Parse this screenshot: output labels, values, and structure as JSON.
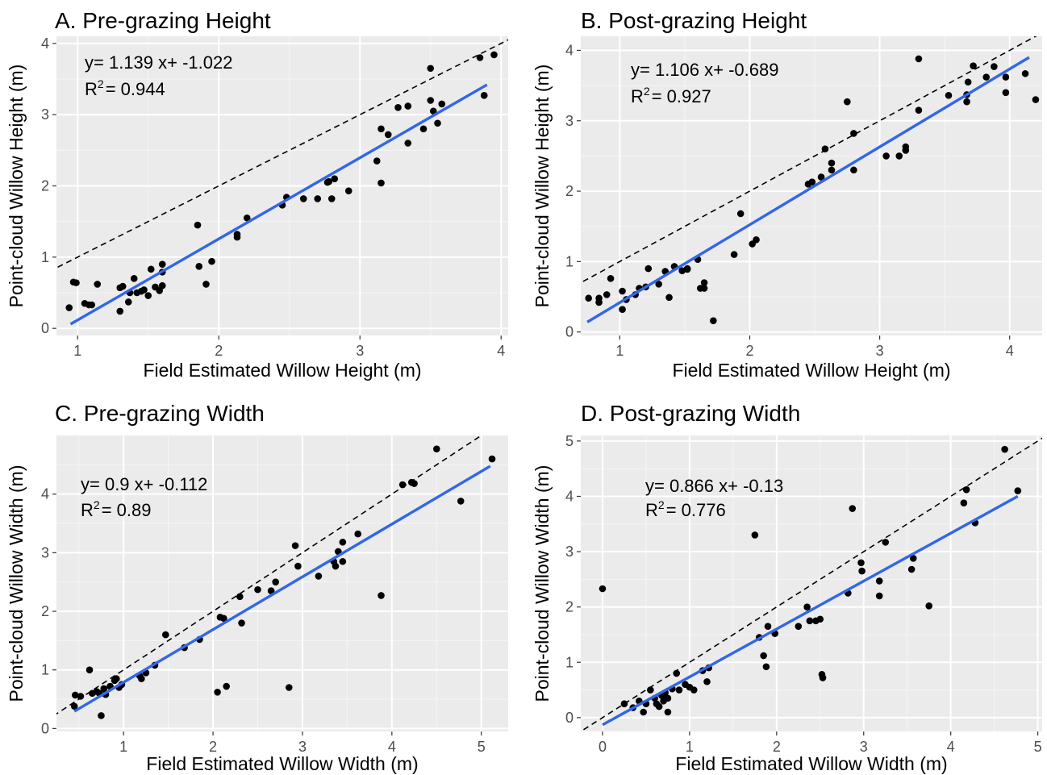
{
  "chart_data": [
    {
      "type": "scatter",
      "title": "A. Pre-grazing Height",
      "xlabel": "Field Estimated Willow Height (m)",
      "ylabel": "Point-cloud Willow Height (m)",
      "xlim": [
        0.85,
        4.05
      ],
      "ylim": [
        -0.1,
        4.1
      ],
      "xticks": [
        1,
        2,
        3,
        4
      ],
      "yticks": [
        0,
        1,
        2,
        3,
        4
      ],
      "grid": true,
      "equation": "y= 1.139 x+ -1.022",
      "r2_label": "R",
      "r2_sup": "2",
      "r2_value": "= 0.944",
      "fit": {
        "slope": 1.139,
        "intercept": -1.022,
        "x_range": [
          0.95,
          3.9
        ],
        "color": "#3366e6"
      },
      "identity_line": true,
      "points": [
        [
          0.94,
          0.29
        ],
        [
          0.97,
          0.65
        ],
        [
          0.99,
          0.64
        ],
        [
          1.05,
          0.35
        ],
        [
          1.08,
          0.33
        ],
        [
          1.1,
          0.33
        ],
        [
          1.14,
          0.62
        ],
        [
          1.3,
          0.24
        ],
        [
          1.3,
          0.57
        ],
        [
          1.32,
          0.59
        ],
        [
          1.36,
          0.37
        ],
        [
          1.37,
          0.5
        ],
        [
          1.4,
          0.7
        ],
        [
          1.42,
          0.5
        ],
        [
          1.45,
          0.52
        ],
        [
          1.47,
          0.54
        ],
        [
          1.5,
          0.46
        ],
        [
          1.52,
          0.83
        ],
        [
          1.55,
          0.58
        ],
        [
          1.58,
          0.53
        ],
        [
          1.6,
          0.6
        ],
        [
          1.6,
          0.79
        ],
        [
          1.6,
          0.9
        ],
        [
          1.85,
          1.45
        ],
        [
          1.86,
          0.87
        ],
        [
          1.91,
          0.62
        ],
        [
          1.95,
          0.94
        ],
        [
          2.13,
          1.32
        ],
        [
          2.13,
          1.28
        ],
        [
          2.2,
          1.55
        ],
        [
          2.45,
          1.73
        ],
        [
          2.48,
          1.84
        ],
        [
          2.6,
          1.82
        ],
        [
          2.7,
          1.82
        ],
        [
          2.77,
          2.05
        ],
        [
          2.78,
          2.06
        ],
        [
          2.8,
          1.82
        ],
        [
          2.82,
          2.1
        ],
        [
          2.92,
          1.93
        ],
        [
          3.12,
          2.35
        ],
        [
          3.15,
          2.04
        ],
        [
          3.15,
          2.8
        ],
        [
          3.2,
          2.72
        ],
        [
          3.27,
          3.1
        ],
        [
          3.34,
          3.12
        ],
        [
          3.34,
          2.6
        ],
        [
          3.45,
          2.8
        ],
        [
          3.5,
          3.65
        ],
        [
          3.5,
          3.2
        ],
        [
          3.52,
          3.05
        ],
        [
          3.55,
          2.88
        ],
        [
          3.58,
          3.15
        ],
        [
          3.85,
          3.8
        ],
        [
          3.88,
          3.27
        ],
        [
          3.95,
          3.84
        ]
      ]
    },
    {
      "type": "scatter",
      "title": "B. Post-grazing Height",
      "xlabel": "Field Estimated Willow Height (m)",
      "ylabel": "Point-cloud Willow Height (m)",
      "xlim": [
        0.7,
        4.25
      ],
      "ylim": [
        -0.05,
        4.2
      ],
      "xticks": [
        1,
        2,
        3,
        4
      ],
      "yticks": [
        0,
        1,
        2,
        3,
        4
      ],
      "grid": true,
      "equation": "y= 1.106 x+ -0.689",
      "r2_label": "R",
      "r2_sup": "2",
      "r2_value": "= 0.927",
      "fit": {
        "slope": 1.106,
        "intercept": -0.689,
        "x_range": [
          0.75,
          4.15
        ],
        "color": "#3366e6"
      },
      "identity_line": true,
      "points": [
        [
          0.76,
          0.48
        ],
        [
          0.84,
          0.42
        ],
        [
          0.84,
          0.48
        ],
        [
          0.9,
          0.53
        ],
        [
          0.93,
          0.76
        ],
        [
          1.02,
          0.32
        ],
        [
          1.02,
          0.58
        ],
        [
          1.05,
          0.46
        ],
        [
          1.12,
          0.53
        ],
        [
          1.15,
          0.62
        ],
        [
          1.2,
          0.64
        ],
        [
          1.22,
          0.9
        ],
        [
          1.3,
          0.68
        ],
        [
          1.35,
          0.86
        ],
        [
          1.38,
          0.49
        ],
        [
          1.42,
          0.93
        ],
        [
          1.48,
          0.87
        ],
        [
          1.52,
          0.9
        ],
        [
          1.52,
          0.89
        ],
        [
          1.6,
          1.03
        ],
        [
          1.62,
          0.62
        ],
        [
          1.65,
          0.62
        ],
        [
          1.65,
          0.7
        ],
        [
          1.72,
          0.16
        ],
        [
          1.88,
          1.1
        ],
        [
          1.93,
          1.68
        ],
        [
          2.02,
          1.25
        ],
        [
          2.05,
          1.31
        ],
        [
          2.45,
          2.1
        ],
        [
          2.48,
          2.13
        ],
        [
          2.55,
          2.2
        ],
        [
          2.58,
          2.6
        ],
        [
          2.63,
          2.3
        ],
        [
          2.63,
          2.4
        ],
        [
          2.75,
          3.27
        ],
        [
          2.8,
          2.3
        ],
        [
          2.8,
          2.82
        ],
        [
          3.05,
          2.5
        ],
        [
          3.15,
          2.5
        ],
        [
          3.2,
          2.58
        ],
        [
          3.2,
          2.63
        ],
        [
          3.3,
          3.15
        ],
        [
          3.3,
          3.88
        ],
        [
          3.53,
          3.36
        ],
        [
          3.67,
          3.27
        ],
        [
          3.67,
          3.37
        ],
        [
          3.68,
          3.55
        ],
        [
          3.72,
          3.78
        ],
        [
          3.82,
          3.62
        ],
        [
          3.88,
          3.77
        ],
        [
          3.97,
          3.4
        ],
        [
          3.97,
          3.62
        ],
        [
          4.12,
          3.67
        ],
        [
          4.2,
          3.3
        ]
      ]
    },
    {
      "type": "scatter",
      "title": "C. Pre-grazing Width",
      "xlabel": "Field Estimated Willow Width (m)",
      "ylabel": "Point-cloud Willow Width (m)",
      "xlim": [
        0.25,
        5.3
      ],
      "ylim": [
        -0.05,
        5.0
      ],
      "xticks": [
        1,
        2,
        3,
        4,
        5
      ],
      "yticks": [
        0,
        1,
        2,
        3,
        4
      ],
      "grid": true,
      "equation": "y= 0.9 x+ -0.112",
      "r2_label": "R",
      "r2_sup": "2",
      "r2_value": "= 0.89",
      "fit": {
        "slope": 0.9,
        "intercept": -0.112,
        "x_range": [
          0.45,
          5.1
        ],
        "color": "#3366e6"
      },
      "identity_line": true,
      "points": [
        [
          0.45,
          0.38
        ],
        [
          0.46,
          0.57
        ],
        [
          0.52,
          0.55
        ],
        [
          0.62,
          1.0
        ],
        [
          0.65,
          0.6
        ],
        [
          0.7,
          0.63
        ],
        [
          0.73,
          0.6
        ],
        [
          0.75,
          0.22
        ],
        [
          0.78,
          0.68
        ],
        [
          0.8,
          0.58
        ],
        [
          0.85,
          0.72
        ],
        [
          0.9,
          0.82
        ],
        [
          0.92,
          0.85
        ],
        [
          0.95,
          0.7
        ],
        [
          0.98,
          0.75
        ],
        [
          1.18,
          0.9
        ],
        [
          1.2,
          0.85
        ],
        [
          1.25,
          0.95
        ],
        [
          1.35,
          1.08
        ],
        [
          1.47,
          1.6
        ],
        [
          1.68,
          1.38
        ],
        [
          1.85,
          1.52
        ],
        [
          2.05,
          0.62
        ],
        [
          2.08,
          1.9
        ],
        [
          2.12,
          1.88
        ],
        [
          2.15,
          0.72
        ],
        [
          2.3,
          2.25
        ],
        [
          2.32,
          1.8
        ],
        [
          2.5,
          2.37
        ],
        [
          2.65,
          2.35
        ],
        [
          2.7,
          2.5
        ],
        [
          2.85,
          0.7
        ],
        [
          2.92,
          3.12
        ],
        [
          2.95,
          2.77
        ],
        [
          3.18,
          2.6
        ],
        [
          3.35,
          2.85
        ],
        [
          3.37,
          2.77
        ],
        [
          3.4,
          3.02
        ],
        [
          3.45,
          3.18
        ],
        [
          3.45,
          2.85
        ],
        [
          3.62,
          3.32
        ],
        [
          3.88,
          2.27
        ],
        [
          4.12,
          4.16
        ],
        [
          4.22,
          4.2
        ],
        [
          4.25,
          4.18
        ],
        [
          4.5,
          4.77
        ],
        [
          4.77,
          3.88
        ],
        [
          5.12,
          4.6
        ]
      ]
    },
    {
      "type": "scatter",
      "title": "D. Post-grazing Width",
      "xlabel": "Field Estimated Willow Width (m)",
      "ylabel": "Point-cloud Willow Width (m)",
      "xlim": [
        -0.25,
        5.05
      ],
      "ylim": [
        -0.25,
        5.1
      ],
      "xticks": [
        0,
        1,
        2,
        3,
        4,
        5
      ],
      "yticks": [
        0,
        1,
        2,
        3,
        4,
        5
      ],
      "grid": true,
      "equation": "y= 0.866 x+ -0.13",
      "r2_label": "R",
      "r2_sup": "2",
      "r2_value": "= 0.776",
      "fit": {
        "slope": 0.866,
        "intercept": -0.13,
        "x_range": [
          0.0,
          4.77
        ],
        "color": "#3366e6"
      },
      "identity_line": true,
      "points": [
        [
          0.0,
          2.33
        ],
        [
          0.25,
          0.25
        ],
        [
          0.35,
          0.18
        ],
        [
          0.42,
          0.3
        ],
        [
          0.47,
          0.1
        ],
        [
          0.5,
          0.25
        ],
        [
          0.55,
          0.5
        ],
        [
          0.6,
          0.35
        ],
        [
          0.62,
          0.25
        ],
        [
          0.65,
          0.2
        ],
        [
          0.68,
          0.4
        ],
        [
          0.7,
          0.3
        ],
        [
          0.72,
          0.45
        ],
        [
          0.75,
          0.1
        ],
        [
          0.75,
          0.35
        ],
        [
          0.8,
          0.52
        ],
        [
          0.85,
          0.8
        ],
        [
          0.88,
          0.5
        ],
        [
          0.95,
          0.6
        ],
        [
          1.0,
          0.55
        ],
        [
          1.05,
          0.5
        ],
        [
          1.15,
          0.85
        ],
        [
          1.2,
          0.65
        ],
        [
          1.22,
          0.9
        ],
        [
          1.75,
          3.3
        ],
        [
          1.8,
          1.45
        ],
        [
          1.85,
          1.12
        ],
        [
          1.88,
          0.92
        ],
        [
          1.9,
          1.65
        ],
        [
          1.98,
          1.52
        ],
        [
          2.25,
          1.65
        ],
        [
          2.35,
          2.0
        ],
        [
          2.38,
          1.75
        ],
        [
          2.45,
          1.75
        ],
        [
          2.5,
          1.78
        ],
        [
          2.52,
          0.78
        ],
        [
          2.53,
          0.72
        ],
        [
          2.82,
          2.25
        ],
        [
          2.87,
          3.78
        ],
        [
          2.97,
          2.8
        ],
        [
          2.98,
          2.65
        ],
        [
          3.18,
          2.2
        ],
        [
          3.18,
          2.47
        ],
        [
          3.25,
          3.17
        ],
        [
          3.55,
          2.68
        ],
        [
          3.57,
          2.88
        ],
        [
          3.75,
          2.02
        ],
        [
          4.15,
          3.88
        ],
        [
          4.18,
          4.12
        ],
        [
          4.28,
          3.52
        ],
        [
          4.62,
          4.85
        ],
        [
          4.77,
          4.1
        ]
      ]
    }
  ]
}
